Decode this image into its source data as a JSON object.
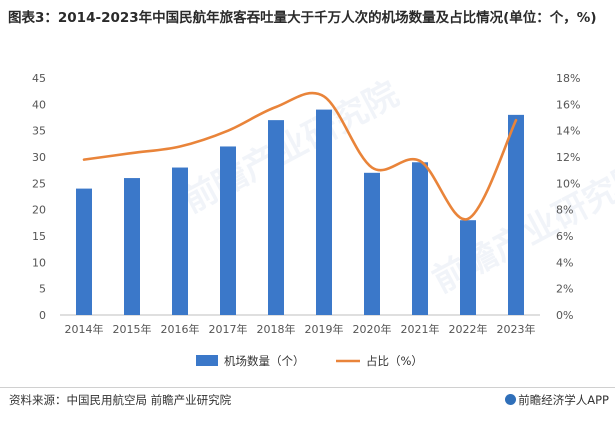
{
  "title": "图表3：2014-2023年中国民航年旅客吞吐量大于千万人次的机场数量及占比情况(单位：个，%)",
  "footer": {
    "source": "资料来源：中国民用航空局 前瞻产业研究院",
    "brand": "前瞻经济学人APP"
  },
  "watermark": "前瞻产业研究院",
  "colors": {
    "bar": "#3b78c9",
    "line": "#e9843a",
    "axis_text": "#555555"
  },
  "chart_data": {
    "type": "bar",
    "categories": [
      "2014年",
      "2015年",
      "2016年",
      "2017年",
      "2018年",
      "2019年",
      "2020年",
      "2021年",
      "2022年",
      "2023年"
    ],
    "series": [
      {
        "name": "机场数量（个）",
        "type": "bar",
        "axis": "left",
        "values": [
          24,
          26,
          28,
          32,
          37,
          39,
          27,
          29,
          18,
          38
        ]
      },
      {
        "name": "占比（%）",
        "type": "line",
        "axis": "right",
        "values": [
          11.8,
          12.3,
          12.8,
          14.0,
          15.8,
          16.6,
          11.2,
          11.7,
          7.3,
          14.8
        ]
      }
    ],
    "ylim_left": [
      0,
      45
    ],
    "yticks_left": [
      "0",
      "5",
      "10",
      "15",
      "20",
      "25",
      "30",
      "35",
      "40",
      "45"
    ],
    "ylim_right": [
      0,
      18
    ],
    "yticks_right": [
      "0%",
      "2%",
      "4%",
      "6%",
      "8%",
      "10%",
      "12%",
      "14%",
      "16%",
      "18%"
    ],
    "legend_position": "bottom",
    "grid": false
  }
}
